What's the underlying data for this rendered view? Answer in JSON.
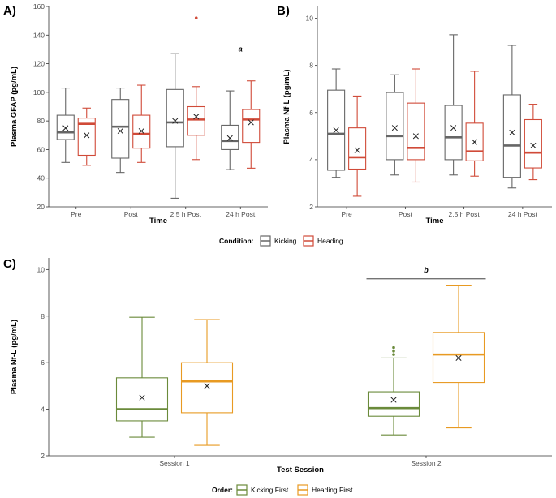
{
  "panel_labels": {
    "a": "A)",
    "b": "B)",
    "c": "C)"
  },
  "legend_top": {
    "title": "Condition:",
    "items": [
      "Kicking",
      "Heading"
    ]
  },
  "legend_bottom": {
    "title": "Order:",
    "items": [
      "Kicking First",
      "Heading First"
    ]
  },
  "colors": {
    "kicking": "#666666",
    "heading": "#d04a38",
    "kicking_first": "#6a8a3a",
    "heading_first": "#e89a22",
    "axis": "#333333"
  },
  "chart_data": [
    {
      "id": "A",
      "type": "box",
      "title": "",
      "xlabel": "Time",
      "ylabel": "Plasma GFAP (pg/mL)",
      "ylim": [
        20,
        160
      ],
      "yticks": [
        20,
        40,
        60,
        80,
        100,
        120,
        140,
        160
      ],
      "categories": [
        "Pre",
        "Post",
        "2.5 h Post",
        "24 h Post"
      ],
      "series": [
        {
          "name": "Kicking",
          "color": "#666666",
          "boxes": [
            {
              "whislo": 51,
              "q1": 67,
              "med": 72,
              "q3": 84,
              "whishi": 103,
              "mean": 75,
              "outliers": []
            },
            {
              "whislo": 44,
              "q1": 54,
              "med": 76,
              "q3": 95,
              "whishi": 103,
              "mean": 73,
              "outliers": []
            },
            {
              "whislo": 26,
              "q1": 62,
              "med": 79,
              "q3": 102,
              "whishi": 127,
              "mean": 80,
              "outliers": []
            },
            {
              "whislo": 46,
              "q1": 60,
              "med": 66,
              "q3": 77,
              "whishi": 101,
              "mean": 68,
              "outliers": []
            }
          ]
        },
        {
          "name": "Heading",
          "color": "#d04a38",
          "boxes": [
            {
              "whislo": 49,
              "q1": 56,
              "med": 78,
              "q3": 82,
              "whishi": 89,
              "mean": 70,
              "outliers": []
            },
            {
              "whislo": 51,
              "q1": 61,
              "med": 71,
              "q3": 84,
              "whishi": 105,
              "mean": 73,
              "outliers": []
            },
            {
              "whislo": 53,
              "q1": 70,
              "med": 81,
              "q3": 90,
              "whishi": 104,
              "mean": 83,
              "outliers": [
                152
              ]
            },
            {
              "whislo": 47,
              "q1": 65,
              "med": 81,
              "q3": 88,
              "whishi": 108,
              "mean": 79,
              "outliers": []
            }
          ]
        }
      ],
      "annotations": [
        {
          "label": "a",
          "from": 3,
          "to": 3,
          "y": 124
        }
      ]
    },
    {
      "id": "B",
      "type": "box",
      "title": "",
      "xlabel": "Time",
      "ylabel": "Plasma Nf-L (pg/mL)",
      "ylim": [
        2,
        10.5
      ],
      "yticks": [
        2,
        4,
        6,
        8,
        10
      ],
      "categories": [
        "Pre",
        "Post",
        "2.5 h Post",
        "24 h Post"
      ],
      "series": [
        {
          "name": "Kicking",
          "color": "#666666",
          "boxes": [
            {
              "whislo": 3.25,
              "q1": 3.55,
              "med": 5.1,
              "q3": 6.95,
              "whishi": 7.85,
              "mean": 5.25,
              "outliers": []
            },
            {
              "whislo": 3.35,
              "q1": 4.0,
              "med": 5.0,
              "q3": 6.85,
              "whishi": 7.6,
              "mean": 5.35,
              "outliers": []
            },
            {
              "whislo": 3.35,
              "q1": 4.0,
              "med": 4.95,
              "q3": 6.3,
              "whishi": 9.3,
              "mean": 5.35,
              "outliers": []
            },
            {
              "whislo": 2.8,
              "q1": 3.25,
              "med": 4.6,
              "q3": 6.75,
              "whishi": 8.85,
              "mean": 5.15,
              "outliers": []
            }
          ]
        },
        {
          "name": "Heading",
          "color": "#d04a38",
          "boxes": [
            {
              "whislo": 2.45,
              "q1": 3.6,
              "med": 4.1,
              "q3": 5.35,
              "whishi": 6.7,
              "mean": 4.4,
              "outliers": []
            },
            {
              "whislo": 3.05,
              "q1": 4.0,
              "med": 4.5,
              "q3": 6.4,
              "whishi": 7.85,
              "mean": 5.0,
              "outliers": []
            },
            {
              "whislo": 3.3,
              "q1": 3.95,
              "med": 4.35,
              "q3": 5.55,
              "whishi": 7.75,
              "mean": 4.75,
              "outliers": []
            },
            {
              "whislo": 3.15,
              "q1": 3.65,
              "med": 4.3,
              "q3": 5.7,
              "whishi": 6.35,
              "mean": 4.6,
              "outliers": []
            }
          ]
        }
      ],
      "annotations": []
    },
    {
      "id": "C",
      "type": "box",
      "title": "",
      "xlabel": "Test Session",
      "ylabel": "Plasma Nf-L (pg/mL)",
      "ylim": [
        2,
        10.5
      ],
      "yticks": [
        2,
        4,
        6,
        8,
        10
      ],
      "categories": [
        "Session 1",
        "Session 2"
      ],
      "series": [
        {
          "name": "Kicking First",
          "color": "#6a8a3a",
          "boxes": [
            {
              "whislo": 2.8,
              "q1": 3.5,
              "med": 4.0,
              "q3": 5.35,
              "whishi": 7.95,
              "mean": 4.5,
              "outliers": []
            },
            {
              "whislo": 2.9,
              "q1": 3.7,
              "med": 4.05,
              "q3": 4.75,
              "whishi": 6.2,
              "mean": 4.4,
              "outliers": [
                6.35,
                6.5,
                6.65
              ]
            }
          ]
        },
        {
          "name": "Heading First",
          "color": "#e89a22",
          "boxes": [
            {
              "whislo": 2.45,
              "q1": 3.85,
              "med": 5.2,
              "q3": 6.0,
              "whishi": 7.85,
              "mean": 5.0,
              "outliers": []
            },
            {
              "whislo": 3.2,
              "q1": 5.15,
              "med": 6.35,
              "q3": 7.3,
              "whishi": 9.3,
              "mean": 6.2,
              "outliers": []
            }
          ]
        }
      ],
      "annotations": [
        {
          "label": "b",
          "from": 1,
          "to": 1,
          "y": 9.6
        }
      ]
    }
  ]
}
